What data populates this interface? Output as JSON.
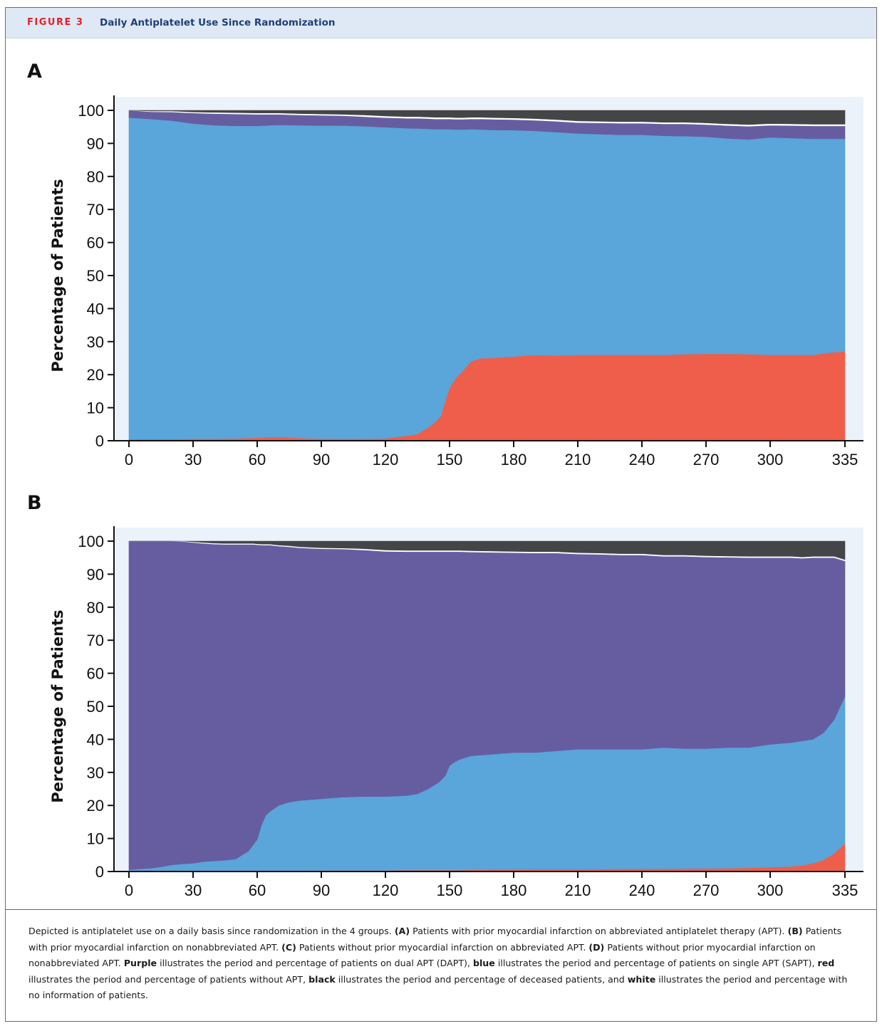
{
  "figure": {
    "label": "FIGURE 3",
    "title": "Daily Antiplatelet Use Since Randomization"
  },
  "colors": {
    "purple": "#665da1",
    "blue": "#5aa5d9",
    "red": "#ef5e4a",
    "black": "#444546",
    "white": "#ffffff",
    "plot_bg": "#ebf2fa",
    "accent_red": "#e8202a",
    "title_blue": "#1f3f7a"
  },
  "chart_data": [
    {
      "panel": "A",
      "type": "area",
      "stacked": true,
      "ylabel": "Percentage of Patients",
      "xlabel": "",
      "x_ticks": [
        0,
        30,
        60,
        90,
        120,
        150,
        180,
        210,
        240,
        270,
        300,
        335
      ],
      "y_ticks": [
        0,
        10,
        20,
        30,
        40,
        50,
        60,
        70,
        80,
        90,
        100
      ],
      "xlim": [
        0,
        335
      ],
      "ylim": [
        0,
        100
      ],
      "x": [
        0,
        10,
        20,
        30,
        40,
        50,
        60,
        70,
        80,
        90,
        100,
        110,
        120,
        130,
        135,
        140,
        143,
        146,
        148,
        150,
        153,
        156,
        160,
        165,
        170,
        180,
        190,
        200,
        210,
        220,
        230,
        240,
        250,
        260,
        270,
        280,
        290,
        300,
        310,
        320,
        330,
        335
      ],
      "series": [
        {
          "name": "red",
          "color": "#ef5e4a",
          "values": [
            0.5,
            0.5,
            0.5,
            0.6,
            0.6,
            0.7,
            0.9,
            1.2,
            0.8,
            0.6,
            0.6,
            0.6,
            0.7,
            1.5,
            2.0,
            4.0,
            5.5,
            7.5,
            12.0,
            16.0,
            19.0,
            21.0,
            24.0,
            25.0,
            25.0,
            25.5,
            26.0,
            25.8,
            26.0,
            26.0,
            26.0,
            26.0,
            26.0,
            26.2,
            26.3,
            26.3,
            26.2,
            26.0,
            26.0,
            26.0,
            26.8,
            27.0
          ]
        },
        {
          "name": "blue",
          "color": "#5aa5d9",
          "values": [
            97.3,
            96.9,
            96.4,
            95.4,
            94.9,
            94.6,
            94.4,
            94.4,
            94.7,
            94.8,
            94.8,
            94.6,
            94.2,
            93.1,
            92.5,
            90.4,
            88.8,
            86.8,
            82.3,
            78.3,
            75.2,
            73.2,
            70.3,
            69.2,
            69.1,
            68.5,
            67.8,
            67.6,
            67.0,
            66.8,
            66.6,
            66.6,
            66.3,
            66.0,
            65.7,
            65.2,
            65.0,
            65.8,
            65.6,
            65.4,
            64.6,
            64.4
          ]
        },
        {
          "name": "purple",
          "color": "#665da1",
          "values": [
            2.2,
            2.2,
            2.6,
            3.2,
            3.5,
            3.6,
            3.5,
            3.2,
            3.1,
            3.1,
            3.0,
            2.9,
            2.9,
            3.0,
            3.1,
            3.1,
            3.1,
            3.1,
            3.1,
            3.1,
            3.1,
            3.1,
            3.1,
            3.2,
            3.2,
            3.2,
            3.2,
            3.3,
            3.3,
            3.4,
            3.5,
            3.5,
            3.6,
            3.7,
            3.7,
            3.9,
            4.0,
            3.7,
            3.8,
            3.9,
            3.9,
            3.9
          ]
        },
        {
          "name": "white",
          "color": "#ffffff",
          "values": [
            0.0,
            0.2,
            0.3,
            0.3,
            0.4,
            0.4,
            0.4,
            0.4,
            0.4,
            0.4,
            0.4,
            0.5,
            0.5,
            0.5,
            0.5,
            0.5,
            0.5,
            0.5,
            0.5,
            0.5,
            0.5,
            0.5,
            0.5,
            0.5,
            0.5,
            0.5,
            0.5,
            0.5,
            0.5,
            0.5,
            0.5,
            0.5,
            0.5,
            0.5,
            0.5,
            0.5,
            0.5,
            0.5,
            0.5,
            0.5,
            0.5,
            0.5
          ]
        },
        {
          "name": "black",
          "color": "#444546",
          "values": [
            0.0,
            0.2,
            0.2,
            0.5,
            0.6,
            0.7,
            0.8,
            0.8,
            1.0,
            1.1,
            1.2,
            1.4,
            1.7,
            1.9,
            1.9,
            2.0,
            2.1,
            2.1,
            2.1,
            2.1,
            2.2,
            2.2,
            2.1,
            2.1,
            2.2,
            2.3,
            2.5,
            2.8,
            3.2,
            3.3,
            3.4,
            3.4,
            3.6,
            3.6,
            3.8,
            4.1,
            4.3,
            4.0,
            4.1,
            4.2,
            4.2,
            4.2
          ]
        }
      ]
    },
    {
      "panel": "B",
      "type": "area",
      "stacked": true,
      "ylabel": "Percentage of Patients",
      "xlabel": "",
      "x_ticks": [
        0,
        30,
        60,
        90,
        120,
        150,
        180,
        210,
        240,
        270,
        300,
        335
      ],
      "y_ticks": [
        0,
        10,
        20,
        30,
        40,
        50,
        60,
        70,
        80,
        90,
        100
      ],
      "xlim": [
        0,
        335
      ],
      "ylim": [
        0,
        100
      ],
      "x": [
        0,
        5,
        10,
        15,
        20,
        25,
        30,
        35,
        40,
        45,
        50,
        53,
        56,
        58,
        60,
        62,
        64,
        66,
        70,
        75,
        80,
        90,
        100,
        110,
        120,
        130,
        135,
        140,
        145,
        148,
        150,
        152,
        155,
        160,
        170,
        180,
        190,
        200,
        210,
        220,
        230,
        240,
        250,
        260,
        270,
        280,
        290,
        300,
        310,
        315,
        320,
        325,
        330,
        335
      ],
      "series": [
        {
          "name": "red",
          "color": "#ef5e4a",
          "values": [
            0.2,
            0.2,
            0.2,
            0.2,
            0.2,
            0.2,
            0.2,
            0.2,
            0.2,
            0.2,
            0.2,
            0.2,
            0.2,
            0.2,
            0.2,
            0.2,
            0.2,
            0.2,
            0.2,
            0.2,
            0.2,
            0.3,
            0.3,
            0.3,
            0.3,
            0.4,
            0.4,
            0.4,
            0.4,
            0.4,
            0.4,
            0.4,
            0.4,
            0.5,
            0.6,
            0.6,
            0.7,
            0.7,
            0.7,
            0.7,
            0.8,
            0.8,
            0.8,
            0.9,
            0.9,
            1.0,
            1.1,
            1.3,
            1.5,
            1.8,
            2.5,
            3.5,
            5.5,
            8.5
          ]
        },
        {
          "name": "blue",
          "color": "#5aa5d9",
          "values": [
            0.3,
            0.6,
            0.8,
            1.2,
            1.8,
            2.1,
            2.3,
            2.8,
            3.0,
            3.2,
            3.6,
            4.8,
            6.0,
            7.8,
            9.5,
            13.8,
            16.8,
            18.0,
            19.8,
            20.8,
            21.3,
            21.7,
            22.2,
            22.4,
            22.4,
            22.6,
            23.1,
            24.6,
            26.6,
            28.6,
            31.6,
            32.6,
            33.6,
            34.5,
            34.9,
            35.4,
            35.3,
            35.8,
            36.3,
            36.3,
            36.2,
            36.2,
            36.7,
            36.3,
            36.3,
            36.5,
            36.4,
            37.2,
            37.5,
            37.7,
            37.5,
            38.5,
            40.5,
            44.5
          ]
        },
        {
          "name": "purple",
          "color": "#665da1",
          "values": [
            99.5,
            99.2,
            99.0,
            98.6,
            98.0,
            97.6,
            97.1,
            96.3,
            95.9,
            95.6,
            95.2,
            94.0,
            92.8,
            91.0,
            89.2,
            84.8,
            81.8,
            80.6,
            78.5,
            77.3,
            76.5,
            75.7,
            75.1,
            74.6,
            74.2,
            73.8,
            73.3,
            71.8,
            69.8,
            67.8,
            64.8,
            63.8,
            62.8,
            61.7,
            61.1,
            60.5,
            60.4,
            59.9,
            59.1,
            59.0,
            58.8,
            58.8,
            57.9,
            58.2,
            58.0,
            57.6,
            57.5,
            56.5,
            56.0,
            55.3,
            55.0,
            53.0,
            49.0,
            41.0
          ]
        },
        {
          "name": "white",
          "color": "#ffffff",
          "values": [
            0.0,
            0.0,
            0.0,
            0.0,
            0.0,
            0.1,
            0.2,
            0.3,
            0.3,
            0.3,
            0.3,
            0.3,
            0.3,
            0.3,
            0.3,
            0.3,
            0.3,
            0.3,
            0.3,
            0.3,
            0.3,
            0.3,
            0.3,
            0.4,
            0.4,
            0.4,
            0.4,
            0.4,
            0.4,
            0.4,
            0.4,
            0.4,
            0.4,
            0.4,
            0.4,
            0.4,
            0.4,
            0.4,
            0.4,
            0.4,
            0.4,
            0.4,
            0.4,
            0.4,
            0.4,
            0.4,
            0.4,
            0.4,
            0.4,
            0.4,
            0.4,
            0.4,
            0.4,
            0.4
          ]
        },
        {
          "name": "black",
          "color": "#444546",
          "values": [
            0.0,
            0.0,
            0.0,
            0.0,
            0.0,
            0.0,
            0.2,
            0.4,
            0.6,
            0.7,
            0.7,
            0.7,
            0.7,
            0.7,
            0.8,
            0.9,
            0.9,
            0.9,
            1.2,
            1.4,
            1.7,
            2.0,
            2.1,
            2.3,
            2.7,
            2.8,
            2.8,
            2.8,
            2.8,
            2.8,
            2.8,
            2.8,
            2.8,
            2.9,
            3.0,
            3.1,
            3.2,
            3.2,
            3.5,
            3.6,
            3.8,
            3.8,
            4.2,
            4.2,
            4.4,
            4.5,
            4.6,
            4.6,
            4.6,
            4.8,
            4.6,
            4.6,
            4.6,
            5.6
          ]
        }
      ]
    }
  ],
  "caption": {
    "intro": "Depicted is antiplatelet use on a daily basis since randomization in the 4 groups.",
    "a_label": "(A)",
    "a_text": "Patients with prior myocardial infarction on abbreviated antiplatelet therapy (APT).",
    "b_label": "(B)",
    "b_text": "Patients with prior myocardial infarction on nonabbreviated APT.",
    "c_label": "(C)",
    "c_text": "Patients without prior myocardial infarction on abbreviated APT.",
    "d_label": "(D)",
    "d_text": "Patients without prior myocardial infarction on nonabbreviated APT.",
    "purple_word": "Purple",
    "purple_text": "illustrates the period and percentage of patients on dual APT (DAPT),",
    "blue_word": "blue",
    "blue_text": "illustrates the period and percentage of patients on single APT (SAPT),",
    "red_word": "red",
    "red_text": "illustrates the period and percentage of patients without APT,",
    "black_word": "black",
    "black_text": "illustrates the period and percentage of deceased patients, and",
    "white_word": "white",
    "white_text": "illustrates the period and percentage with no information of patients."
  }
}
